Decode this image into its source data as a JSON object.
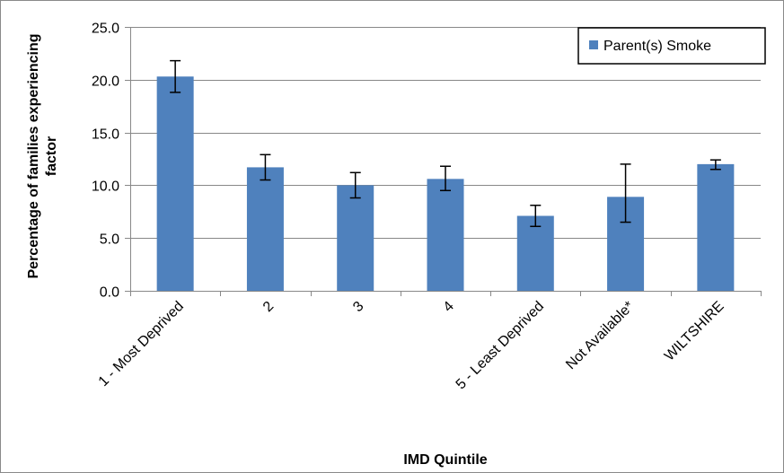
{
  "chart_data": {
    "type": "bar",
    "title": "",
    "xlabel": "IMD Quintile",
    "ylabel_lines": [
      "Percentage of families experiencing",
      "factor"
    ],
    "ylim": [
      0,
      25
    ],
    "yticks": [
      "0.0",
      "5.0",
      "10.0",
      "15.0",
      "20.0",
      "25.0"
    ],
    "grid": true,
    "legend_position": "top-right",
    "categories": [
      "1 - Most Deprived",
      "2",
      "3",
      "4",
      "5 - Least Deprived",
      "Not Available*",
      "WILTSHIRE"
    ],
    "series": [
      {
        "name": "Parent(s) Smoke",
        "color": "#4f81bd",
        "values": [
          20.3,
          11.7,
          10.0,
          10.6,
          7.1,
          8.9,
          12.0
        ],
        "error_low": [
          18.8,
          10.5,
          8.8,
          9.5,
          6.1,
          6.5,
          11.5
        ],
        "error_high": [
          21.8,
          12.9,
          11.2,
          11.8,
          8.1,
          12.0,
          12.4
        ]
      }
    ]
  }
}
